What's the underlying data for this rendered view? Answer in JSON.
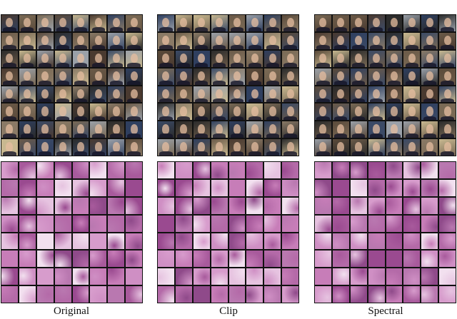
{
  "panels": [
    {
      "label": "Original"
    },
    {
      "label": "Clip"
    },
    {
      "label": "Spectral"
    }
  ],
  "colors": {
    "face_backgrounds": [
      "#2b2b2b",
      "#5a4a3a",
      "#7a6a55",
      "#3b4a66",
      "#6b5a48",
      "#8a7a66",
      "#4a3a30",
      "#9aa0a8",
      "#c8b890",
      "#2f3f5f"
    ],
    "histology_tiles": [
      "#c77db8",
      "#b46aa8",
      "#d79ccc",
      "#a85a9c",
      "#e6c3e0",
      "#9a4a90",
      "#cf8fc4",
      "#f2e0ef",
      "#b978b0",
      "#8f4a8a"
    ]
  }
}
